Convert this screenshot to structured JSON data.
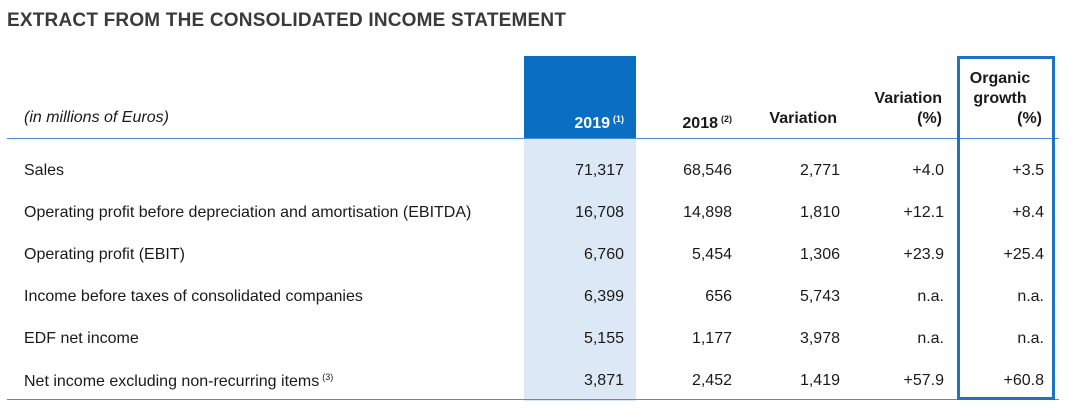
{
  "title": "EXTRACT FROM THE CONSOLIDATED INCOME STATEMENT",
  "colors": {
    "accent": "#0a6fc2",
    "highlight": "#dce8f5",
    "rule": "#4a90d0"
  },
  "header": {
    "units": "(in millions of Euros)",
    "year_2019": "2019",
    "year_2019_note": "(1)",
    "year_2018": "2018",
    "year_2018_note": "(2)",
    "variation": "Variation",
    "variation_pct_line1": "Variation",
    "variation_pct_line2": "(%)",
    "organic_line1": "Organic",
    "organic_line2": "growth",
    "organic_line3": "(%)"
  },
  "rows": [
    {
      "label": "Sales",
      "note": "",
      "v2019": "71,317",
      "v2018": "68,546",
      "variation": "2,771",
      "variation_pct": "+4.0",
      "organic": "+3.5"
    },
    {
      "label": "Operating profit before depreciation and amortisation (EBITDA)",
      "note": "",
      "v2019": "16,708",
      "v2018": "14,898",
      "variation": "1,810",
      "variation_pct": "+12.1",
      "organic": "+8.4"
    },
    {
      "label": "Operating profit (EBIT)",
      "note": "",
      "v2019": "6,760",
      "v2018": "5,454",
      "variation": "1,306",
      "variation_pct": "+23.9",
      "organic": "+25.4"
    },
    {
      "label": "Income before taxes of consolidated companies",
      "note": "",
      "v2019": "6,399",
      "v2018": "656",
      "variation": "5,743",
      "variation_pct": "n.a.",
      "organic": "n.a."
    },
    {
      "label": "EDF net income",
      "note": "",
      "v2019": "5,155",
      "v2018": "1,177",
      "variation": "3,978",
      "variation_pct": "n.a.",
      "organic": "n.a."
    },
    {
      "label": "Net income excluding non-recurring items",
      "note": "(3)",
      "v2019": "3,871",
      "v2018": "2,452",
      "variation": "1,419",
      "variation_pct": "+57.9",
      "organic": "+60.8"
    }
  ]
}
